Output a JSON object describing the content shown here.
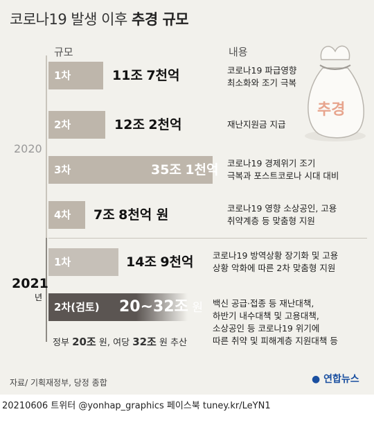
{
  "title": {
    "normal": "코로나19 발생 이후",
    "bold": "추경 규모"
  },
  "headers": {
    "scale": "규모",
    "content": "내용"
  },
  "years": {
    "y2020": "2020",
    "y2021": "2021",
    "y2021_suffix": "년"
  },
  "sack_label": "추경",
  "colors": {
    "bar_2020": "#beb6ab",
    "bar_2021_light": "#c6c0b8",
    "bar_2021_dark": "#5b5552"
  },
  "chart_data": {
    "type": "bar",
    "title": "코로나19 발생 이후 추경 규모",
    "unit": "원",
    "categories": [
      "2020 1차",
      "2020 2차",
      "2020 3차",
      "2020 4차",
      "2021 1차",
      "2021 2차(검토)"
    ],
    "values": [
      11.7,
      12.2,
      35.1,
      7.8,
      14.9,
      26
    ],
    "range_2021_2": [
      20,
      32
    ],
    "bars": [
      {
        "label": "1차",
        "value": 11.7,
        "value_big": "11조",
        "value_rest": "7천억",
        "desc": [
          "코로나19 파급영향",
          "최소화와 조기 극복"
        ]
      },
      {
        "label": "2차",
        "value": 12.2,
        "value_big": "12조",
        "value_rest": "2천억",
        "desc": [
          "재난지원금 지급"
        ]
      },
      {
        "label": "3차",
        "value": 35.1,
        "value_big": "35조",
        "value_rest": "1천억",
        "desc": [
          "코로나19 경제위기 조기",
          "극복과 포스트코로나 시대 대비"
        ]
      },
      {
        "label": "4차",
        "value": 7.8,
        "value_big": "7조",
        "value_rest": "8천억 원",
        "desc": [
          "코로나19 영향 소상공인, 고용",
          "취약계층 등 맞춤형 지원"
        ]
      },
      {
        "label": "1차",
        "value": 14.9,
        "value_big": "14조",
        "value_rest": "9천억",
        "desc": [
          "코로나19 방역상황 장기화 및 고용",
          "상황 악화에 따른 2차 맞춤형 지원"
        ]
      },
      {
        "label": "2차(검토)",
        "value": 26,
        "value_big": "20~32조",
        "value_rest": "원",
        "desc": [
          "백신 공급·접종 등 재난대책,",
          "하반기 내수대책 및 고용대책,",
          "소상공인 등 코로나19 위기에",
          "따른 취약 및 피해계층 지원대책 등"
        ]
      }
    ],
    "estimate": {
      "prefix": "정부",
      "gov": "20조",
      "mid": "원, 여당",
      "party": "32조",
      "suffix": "원 추산"
    }
  },
  "source": "자료/ 기획재정부, 당정 종합",
  "logo": "연합뉴스",
  "footer": "20210606   트위터 @yonhap_graphics  페이스북 tuney.kr/LeYN1"
}
